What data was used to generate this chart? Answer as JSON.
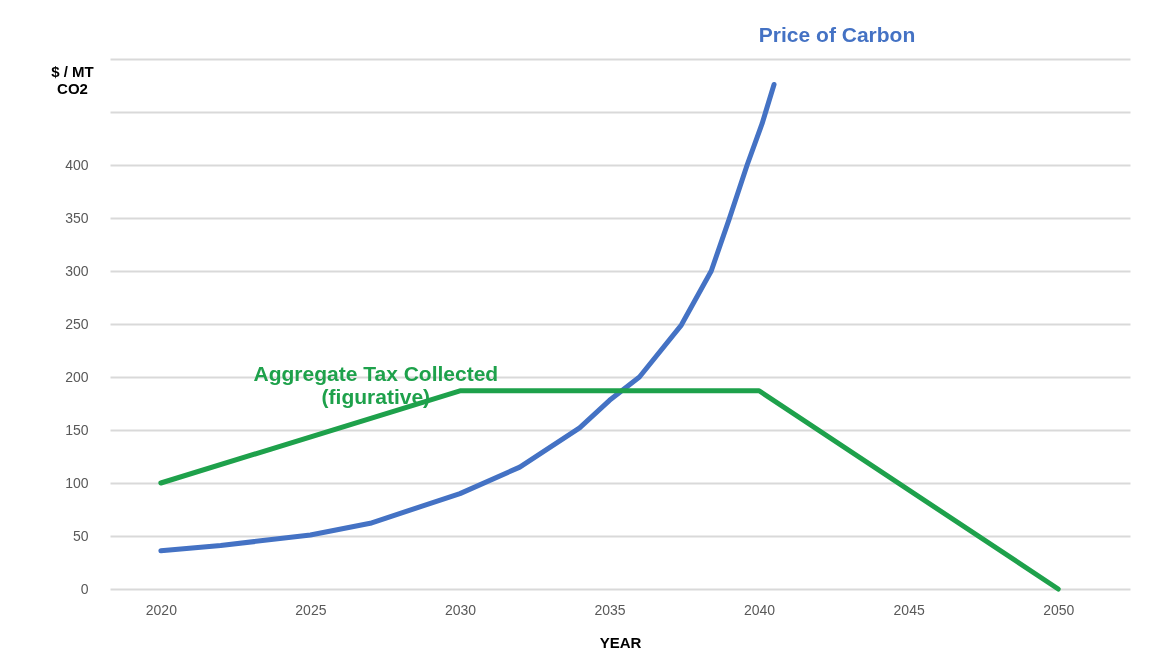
{
  "chart_data": {
    "type": "line",
    "xlabel": "YEAR",
    "ylabel": "$ / MT\nCO2",
    "xlim": [
      2018.3,
      2052.4
    ],
    "xticks": [
      2020,
      2025,
      2030,
      2035,
      2040,
      2045,
      2050
    ],
    "ylim": [
      0,
      500
    ],
    "yticks": [
      0,
      50,
      100,
      150,
      200,
      250,
      300,
      350,
      400,
      {
        "value": 450,
        "label": null
      },
      {
        "value": 500,
        "label": null
      }
    ],
    "grid": "y",
    "series": [
      {
        "name": "Price of Carbon",
        "color": "#4472c4",
        "x": [
          2020,
          2022,
          2025,
          2027,
          2030,
          2032,
          2034,
          2035,
          2036,
          2037.4,
          2038.4,
          2039,
          2039.6,
          2040.1,
          2040.5
        ],
        "values": [
          36,
          41,
          51,
          62,
          90,
          115,
          152,
          178,
          200,
          249,
          300,
          349,
          400,
          439,
          476
        ]
      },
      {
        "name": "Aggregate Tax Collected\n(figurative)",
        "color": "#1ea14b",
        "x": [
          2020,
          2030,
          2040,
          2050
        ],
        "values": [
          100,
          187,
          187,
          0
        ]
      }
    ]
  }
}
